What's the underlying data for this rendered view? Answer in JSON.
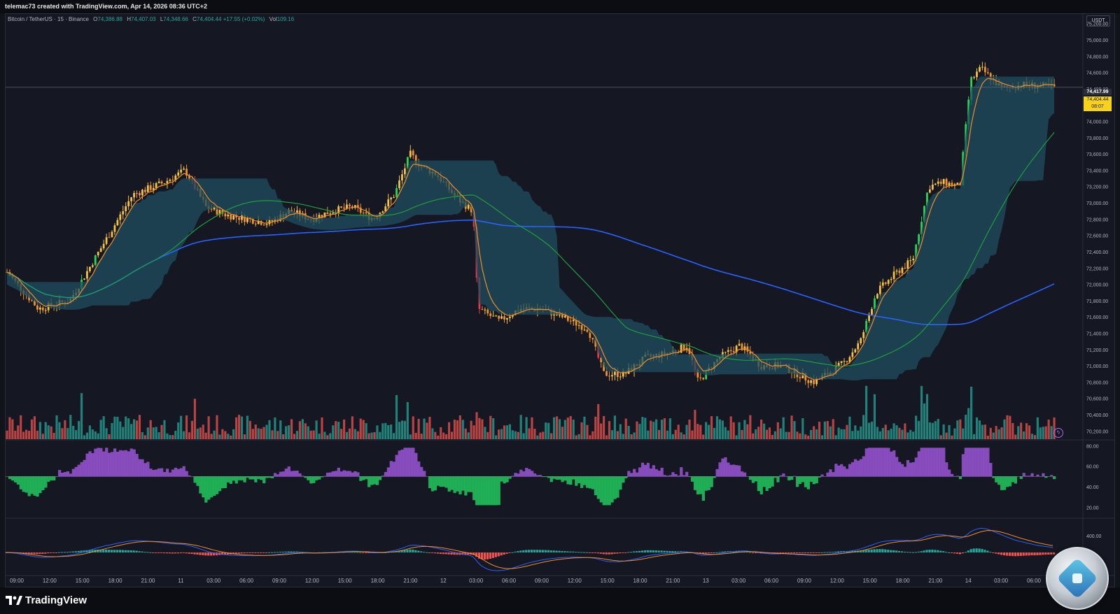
{
  "header": {
    "attribution": "telemac73 created with TradingView.com, Apr 14, 2026 08:36 UTC+2"
  },
  "legend": {
    "symbol": "Bitcoin / TetherUS · 15 · Binance",
    "open_label": "O",
    "open": "74,386.88",
    "high_label": "H",
    "high": "74,407.03",
    "low_label": "L",
    "low": "74,348.66",
    "close_label": "C",
    "close": "74,404.44",
    "change": "+17.55 (+0.02%)",
    "vol_label": "Vol",
    "vol": "109.16"
  },
  "price_scale": {
    "currency": "USDT",
    "ticks": [
      "75,200.00",
      "75,000.00",
      "74,800.00",
      "74,600.00",
      "74,400.00",
      "74,200.00",
      "74,000.00",
      "73,800.00",
      "73,600.00",
      "73,400.00",
      "73,200.00",
      "73,000.00",
      "72,800.00",
      "72,600.00",
      "72,400.00",
      "72,200.00",
      "72,000.00",
      "71,800.00",
      "71,600.00",
      "71,400.00",
      "71,200.00",
      "71,000.00",
      "70,800.00",
      "70,600.00",
      "70,400.00",
      "70,200.00"
    ],
    "last_price_tag": "74,417.99",
    "current_price_tag": "74,404.44",
    "countdown": "08:07"
  },
  "rsi_scale": {
    "ticks": [
      "80.00",
      "60.00",
      "40.00",
      "20.00"
    ]
  },
  "macd_scale": {
    "ticks": [
      "400.00"
    ]
  },
  "time_axis": {
    "labels": [
      "09:00",
      "12:00",
      "15:00",
      "18:00",
      "21:00",
      "11",
      "03:00",
      "06:00",
      "09:00",
      "12:00",
      "15:00",
      "18:00",
      "21:00",
      "12",
      "03:00",
      "06:00",
      "09:00",
      "12:00",
      "15:00",
      "18:00",
      "21:00",
      "13",
      "03:00",
      "06:00",
      "09:00",
      "12:00",
      "15:00",
      "18:00",
      "21:00",
      "14",
      "03:00",
      "06:00"
    ]
  },
  "footer": {
    "brand": "TradingView"
  },
  "colors": {
    "up": "#26a69a",
    "down": "#ef5350",
    "bright_up": "#2bd655",
    "bright_down": "#f23645",
    "ema_fast": "#f28c28",
    "ma_mid": "#1e9e3e",
    "ma_slow": "#2962ff",
    "cloud_up": "#1f4e5f",
    "cloud_down": "#444652",
    "rsi_up": "#9a55d6",
    "rsi_down": "#22c55e",
    "accent": "#f7d21c"
  },
  "chart_data": {
    "type": "candlestick",
    "title": "Bitcoin / TetherUS · 15 · Binance",
    "ylim": [
      70100,
      75300
    ],
    "series_shapes": {
      "price_path": [
        [
          0,
          72150
        ],
        [
          0.03,
          71700
        ],
        [
          0.06,
          71800
        ],
        [
          0.09,
          72450
        ],
        [
          0.12,
          73100
        ],
        [
          0.15,
          73250
        ],
        [
          0.17,
          73400
        ],
        [
          0.19,
          72950
        ],
        [
          0.21,
          72850
        ],
        [
          0.23,
          72800
        ],
        [
          0.25,
          72750
        ],
        [
          0.27,
          72900
        ],
        [
          0.29,
          72800
        ],
        [
          0.31,
          72900
        ],
        [
          0.33,
          72950
        ],
        [
          0.35,
          72800
        ],
        [
          0.37,
          73100
        ],
        [
          0.385,
          73600
        ],
        [
          0.395,
          73450
        ],
        [
          0.41,
          73350
        ],
        [
          0.43,
          73050
        ],
        [
          0.445,
          72900
        ],
        [
          0.45,
          71700
        ],
        [
          0.47,
          71550
        ],
        [
          0.49,
          71700
        ],
        [
          0.51,
          71700
        ],
        [
          0.53,
          71600
        ],
        [
          0.555,
          71450
        ],
        [
          0.57,
          70900
        ],
        [
          0.59,
          70900
        ],
        [
          0.61,
          71100
        ],
        [
          0.63,
          71150
        ],
        [
          0.65,
          71250
        ],
        [
          0.66,
          70800
        ],
        [
          0.68,
          71100
        ],
        [
          0.7,
          71250
        ],
        [
          0.72,
          71000
        ],
        [
          0.74,
          71000
        ],
        [
          0.755,
          70900
        ],
        [
          0.77,
          70800
        ],
        [
          0.79,
          70950
        ],
        [
          0.8,
          71050
        ],
        [
          0.815,
          71300
        ],
        [
          0.83,
          71900
        ],
        [
          0.85,
          72150
        ],
        [
          0.865,
          72300
        ],
        [
          0.88,
          73200
        ],
        [
          0.895,
          73250
        ],
        [
          0.91,
          73200
        ],
        [
          0.92,
          74500
        ],
        [
          0.93,
          74650
        ],
        [
          0.95,
          74400
        ],
        [
          0.97,
          74450
        ],
        [
          1.0,
          74420
        ]
      ]
    },
    "rsi_ticks": [
      80,
      60,
      40,
      20
    ],
    "macd_ticks": [
      400
    ]
  }
}
